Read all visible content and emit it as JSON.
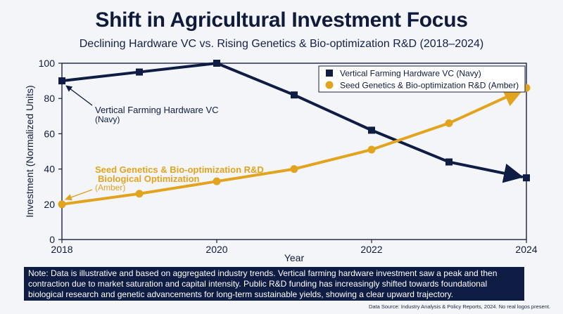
{
  "chart_data": {
    "type": "line",
    "title": "Shift in Agricultural Investment Focus",
    "subtitle": "Declining Hardware VC vs. Rising Genetics & Bio-optimization R&D (2018–2024)",
    "xlabel": "Year",
    "ylabel": "Investment (Normalized Units)",
    "xlim": [
      2018,
      2024
    ],
    "ylim": [
      0,
      100
    ],
    "x_ticks": [
      "2018",
      "2020",
      "2022",
      "2024"
    ],
    "y_ticks": [
      "0",
      "20",
      "40",
      "60",
      "80",
      "100"
    ],
    "grid": false,
    "legend_position": "top-right",
    "x": [
      2018,
      2019,
      2020,
      2021,
      2022,
      2023,
      2024
    ],
    "series": [
      {
        "name": "Vertical Farming Hardware VC (Navy)",
        "color": "#0f1c43",
        "marker": "square",
        "values": [
          90,
          95,
          100,
          82,
          62,
          44,
          35
        ]
      },
      {
        "name": "Seed Genetics & Bio-optimization R&D (Amber)",
        "color": "#e2a31f",
        "marker": "circle",
        "values": [
          20,
          26,
          33,
          40,
          51,
          66,
          86
        ]
      }
    ],
    "annotations": {
      "navy": {
        "line1": "Vertical Farming Hardware VC",
        "line2": "(Navy)"
      },
      "amber": {
        "line1": "Seed Genetics & Bio-optimization R&D",
        "line2": "Biological Optimization",
        "line3": "(Amber)"
      }
    }
  },
  "note": "Note: Data is illustrative and based on aggregated industry trends. Vertical farming hardware investment saw a peak and then contraction due to market saturation and capital intensity. Public R&D funding has increasingly shifted towards foundational biological research and genetic advancements for long-term sustainable yields, showing a clear upward trajectory.",
  "source": "Data Source: Industry Analysis & Policy Reports, 2024. No real logos present."
}
